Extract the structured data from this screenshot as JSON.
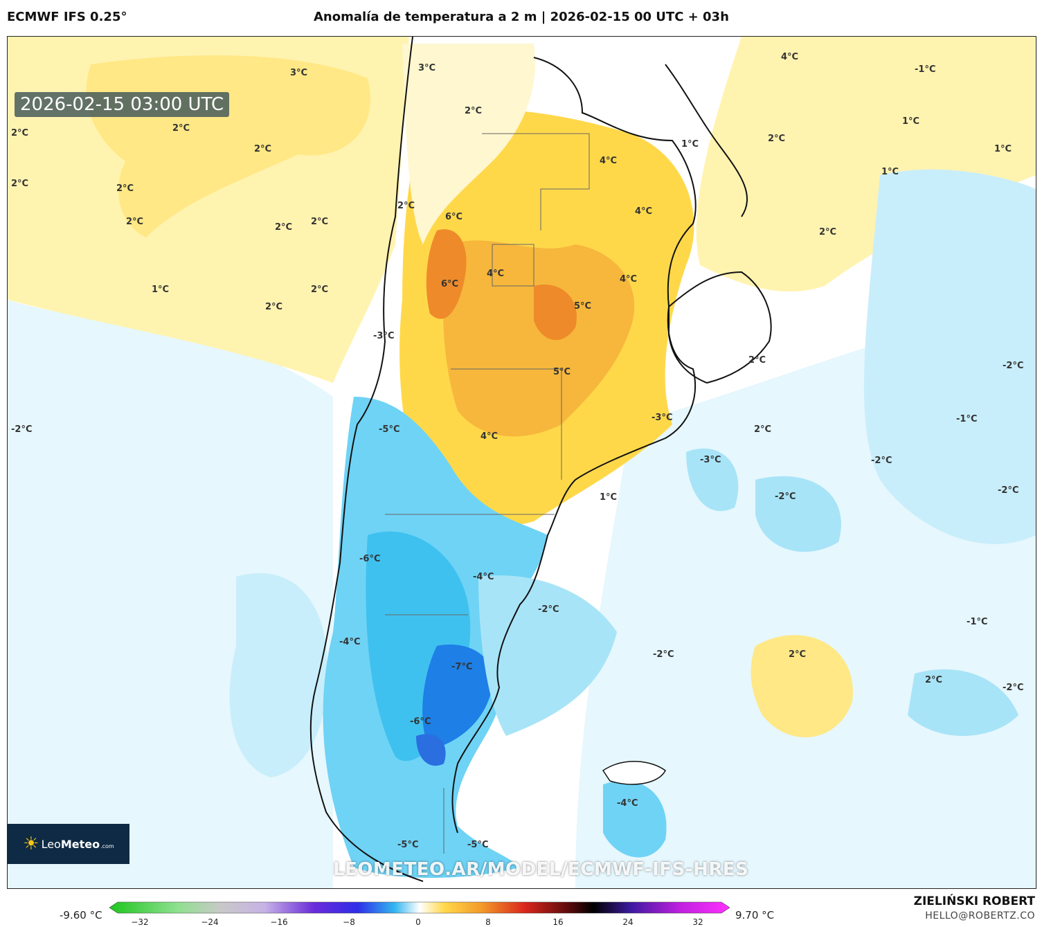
{
  "header": {
    "model": "ECMWF IFS 0.25°",
    "title": "Anomalía de temperatura a 2 m | 2026-02-15 00 UTC + 03h"
  },
  "map": {
    "valid_time": "2026-02-15 03:00 UTC",
    "url": "LEOMETEO.AR/MODEL/ECMWF-IFS-HRES",
    "contour_labels": [
      "3°C",
      "2°C",
      "2°C",
      "2°C",
      "2°C",
      "2°C",
      "2°C",
      "2°C",
      "2°C",
      "1°C",
      "2°C",
      "2°C",
      "3°C",
      "2°C",
      "2°C",
      "6°C",
      "6°C",
      "4°C",
      "4°C",
      "4°C",
      "4°C",
      "5°C",
      "5°C",
      "4°C",
      "-3°C",
      "-5°C",
      "-6°C",
      "-4°C",
      "-4°C",
      "-2°C",
      "-7°C",
      "-6°C",
      "-5°C",
      "-5°C",
      "-4°C",
      "1°C",
      "-3°C",
      "-3°C",
      "2°C",
      "-2°C",
      "4°C",
      "2°C",
      "1°C",
      "1°C",
      "1°C",
      "1°C",
      "2°C",
      "2°C",
      "2°C",
      "-2°C",
      "-1°C",
      "-2°C",
      "-2°C",
      "-2°C",
      "-1°C",
      "2°C",
      "-2°C",
      "-2°C",
      "-2°C",
      "-1°C"
    ],
    "colors": {
      "warm_light": "#fff3b0",
      "warm": "#ffd84a",
      "warm_strong": "#f6b73c",
      "hot": "#ee8a2a",
      "cool_light": "#d6f2fb",
      "cool": "#a8e4f7",
      "cool_strong": "#3fc1f0",
      "cold": "#1e7fe6"
    }
  },
  "logo": {
    "brand_light": "Leo",
    "brand_bold": "Meteo",
    "suffix": ".com"
  },
  "legend": {
    "min_label": "-9.60 °C",
    "max_label": "9.70 °C",
    "ticks": [
      "−32",
      "−24",
      "−16",
      "−8",
      "0",
      "8",
      "16",
      "24",
      "32"
    ]
  },
  "author": {
    "name": "ZIELIŃSKI ROBERT",
    "email": "HELLO@ROBERTZ.CO"
  }
}
